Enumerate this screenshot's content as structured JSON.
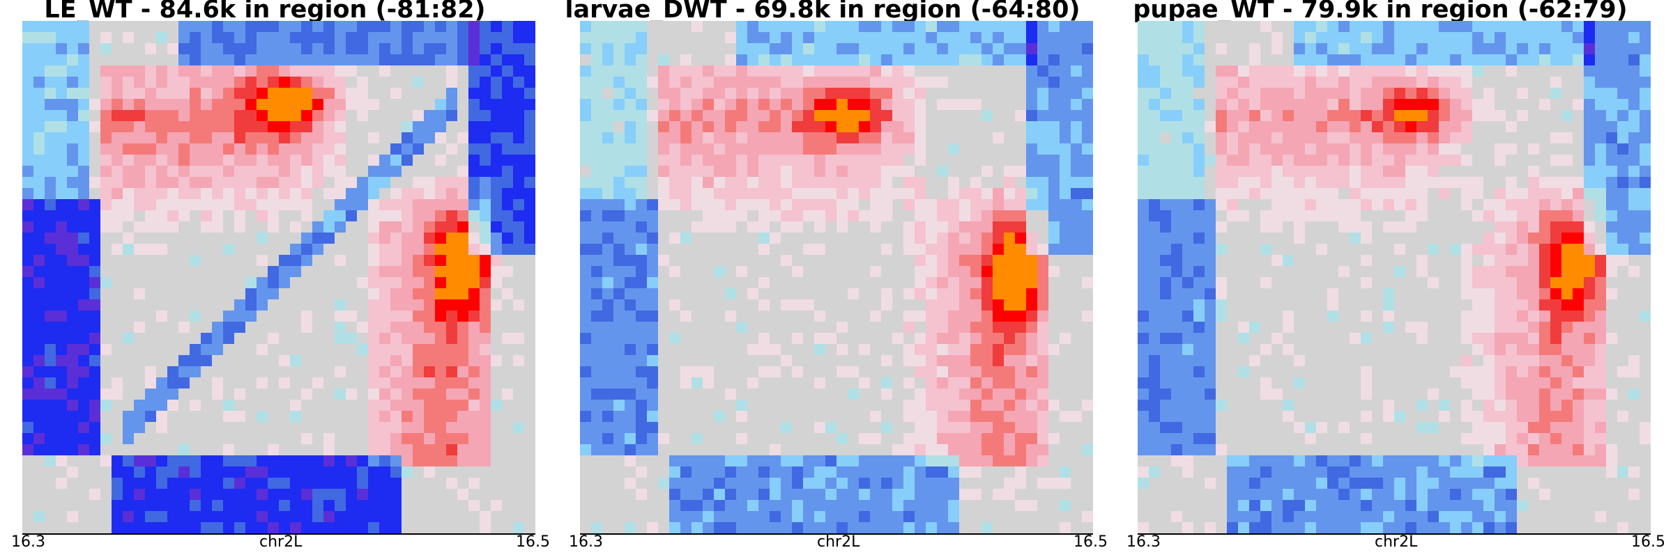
{
  "chart_data": [
    {
      "type": "heatmap",
      "title": "LE_WT - 84.6k in region (-81:82)",
      "xlabel": "chr2L",
      "x_ticks": [
        "16.3",
        "16.5"
      ],
      "grid": false,
      "colors": {
        "low": "#0000ff",
        "mid": "#d3d3d3",
        "high": "#ff0000"
      },
      "domains": [
        {
          "name": "upper-left TAD",
          "range": [
            0.15,
            0.63
          ],
          "level": 0.7,
          "hotspot": [
            0.52,
            0.16
          ]
        },
        {
          "name": "lower-right TAD",
          "range": [
            0.68,
            0.92
          ],
          "level": 0.75,
          "hotspot": [
            0.86,
            0.48
          ]
        },
        {
          "name": "depletion",
          "level": -0.8
        }
      ]
    },
    {
      "type": "heatmap",
      "title": "larvae_DWT - 69.8k in region (-64:80)",
      "xlabel": "chr2L",
      "x_ticks": [
        "16.3",
        "16.5"
      ],
      "grid": false,
      "colors": {
        "low": "#0000ff",
        "mid": "#d3d3d3",
        "high": "#ff0000"
      },
      "domains": [
        {
          "name": "upper-left TAD",
          "range": [
            0.15,
            0.68
          ],
          "level": 0.6,
          "hotspot": [
            0.52,
            0.18
          ]
        },
        {
          "name": "lower-right TAD",
          "range": [
            0.62,
            0.92
          ],
          "level": 0.7,
          "hotspot": [
            0.85,
            0.5
          ]
        },
        {
          "name": "depletion",
          "level": -0.5
        }
      ]
    },
    {
      "type": "heatmap",
      "title": "pupae_WT - 79.9k in region (-62:79)",
      "xlabel": "chr2L",
      "x_ticks": [
        "16.3",
        "16.5"
      ],
      "grid": false,
      "colors": {
        "low": "#0000ff",
        "mid": "#d3d3d3",
        "high": "#ff0000"
      },
      "domains": [
        {
          "name": "upper-left TAD",
          "range": [
            0.15,
            0.65
          ],
          "level": 0.55,
          "hotspot": [
            0.55,
            0.18
          ]
        },
        {
          "name": "lower-right TAD",
          "range": [
            0.64,
            0.92
          ],
          "level": 0.65,
          "hotspot": [
            0.85,
            0.48
          ]
        },
        {
          "name": "depletion",
          "level": -0.5
        }
      ]
    }
  ]
}
